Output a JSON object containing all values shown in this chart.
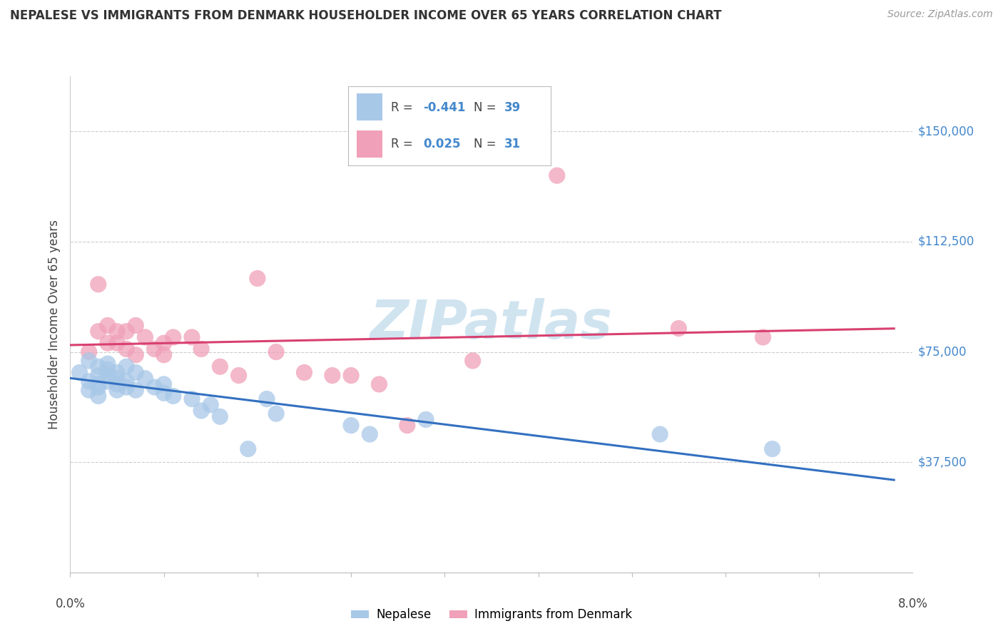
{
  "title": "NEPALESE VS IMMIGRANTS FROM DENMARK HOUSEHOLDER INCOME OVER 65 YEARS CORRELATION CHART",
  "source": "Source: ZipAtlas.com",
  "ylabel": "Householder Income Over 65 years",
  "ytick_labels": [
    "$37,500",
    "$75,000",
    "$112,500",
    "$150,000"
  ],
  "ytick_values": [
    37500,
    75000,
    112500,
    150000
  ],
  "ylim_max": 168750,
  "xlim_max": 0.09,
  "nepalese_color": "#a8c8e8",
  "denmark_color": "#f0a0b8",
  "nepalese_line_color": "#3370c0",
  "denmark_line_color": "#d84070",
  "watermark_color": "#d0e4f0",
  "nepalese_x": [
    0.001,
    0.002,
    0.002,
    0.002,
    0.003,
    0.003,
    0.003,
    0.003,
    0.003,
    0.004,
    0.004,
    0.004,
    0.004,
    0.005,
    0.005,
    0.005,
    0.005,
    0.006,
    0.006,
    0.006,
    0.007,
    0.007,
    0.008,
    0.009,
    0.01,
    0.01,
    0.011,
    0.013,
    0.014,
    0.015,
    0.016,
    0.019,
    0.021,
    0.022,
    0.03,
    0.032,
    0.038,
    0.063,
    0.075
  ],
  "nepalese_y": [
    68000,
    72000,
    65000,
    62000,
    70000,
    67000,
    64000,
    63000,
    60000,
    71000,
    69000,
    67000,
    65000,
    68000,
    66000,
    64000,
    62000,
    70000,
    65000,
    63000,
    68000,
    62000,
    66000,
    63000,
    64000,
    61000,
    60000,
    59000,
    55000,
    57000,
    53000,
    42000,
    59000,
    54000,
    50000,
    47000,
    52000,
    47000,
    42000
  ],
  "denmark_x": [
    0.002,
    0.003,
    0.003,
    0.004,
    0.004,
    0.005,
    0.005,
    0.006,
    0.006,
    0.007,
    0.007,
    0.008,
    0.009,
    0.01,
    0.01,
    0.011,
    0.013,
    0.014,
    0.016,
    0.018,
    0.02,
    0.022,
    0.025,
    0.028,
    0.03,
    0.033,
    0.036,
    0.043,
    0.052,
    0.065,
    0.074
  ],
  "denmark_y": [
    75000,
    98000,
    82000,
    84000,
    78000,
    82000,
    78000,
    82000,
    76000,
    84000,
    74000,
    80000,
    76000,
    78000,
    74000,
    80000,
    80000,
    76000,
    70000,
    67000,
    100000,
    75000,
    68000,
    67000,
    67000,
    64000,
    50000,
    72000,
    135000,
    83000,
    80000
  ],
  "legend_r1_label": "R = ",
  "legend_r1_val": "-0.441",
  "legend_n1_label": "N = ",
  "legend_n1_val": "39",
  "legend_r2_label": "R =  ",
  "legend_r2_val": "0.025",
  "legend_n2_label": "N = ",
  "legend_n2_val": "31",
  "bottom_legend_nep": "Nepalese",
  "bottom_legend_den": "Immigrants from Denmark"
}
